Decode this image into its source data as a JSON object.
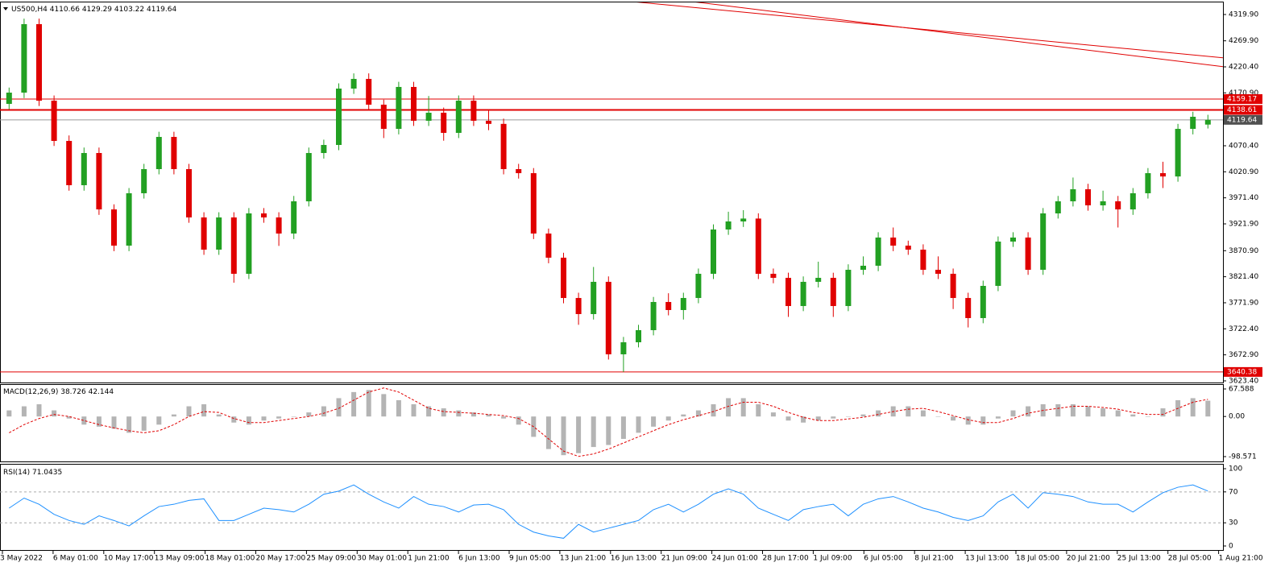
{
  "header": {
    "symbol": "US500,H4"
  },
  "chart_data": [
    {
      "type": "candlestick",
      "up_color": "#22a022",
      "down_color": "#e00000",
      "open": [
        4150,
        4171.4,
        4301.6,
        4156.1,
        4079.6,
        3995.4,
        4056.6,
        3949.4,
        3880.5,
        3980.1,
        4026.0,
        4087.2,
        4026.0,
        3934.1,
        3872.9,
        3934.1,
        3827.0,
        3941.8,
        3934.1,
        3903.5,
        3964.8,
        4056.6,
        4071.9,
        4179.1,
        4197.5,
        4148.5,
        4102.5,
        4182.2,
        4117.9,
        4133.2,
        4094.9,
        4156.1,
        4117.9,
        4112.0,
        4026.0,
        4018.3,
        3903.5,
        3857.6,
        3781.0,
        3750.4,
        3811.7,
        3673.9,
        3696.8,
        3719.8,
        3773.4,
        3758.1,
        3781.0,
        3827.0,
        3911.2,
        3926.5,
        3932,
        3827.0,
        3819.3,
        3765.7,
        3811.7,
        3819.3,
        3765.7,
        3834.6,
        3842.3,
        3895.9,
        3880.5,
        3872.9,
        3834.6,
        3827.0,
        3781.0,
        3742.8,
        3804.0,
        3888.2,
        3895.9,
        3834.6,
        3941.8,
        3964.8,
        3987.7,
        3957.1,
        3964.8,
        3949.4,
        3980.1,
        4018.3,
        4012.0,
        4102.5,
        4110.66
      ],
      "high": [
        4181,
        4312,
        4312,
        4166,
        4090,
        4067,
        4067,
        3959,
        3990,
        4036,
        4097,
        4097,
        4036,
        3944,
        3944,
        3944,
        3952,
        3952,
        3944,
        3975,
        4067,
        4082,
        4189,
        4208,
        4208,
        4158,
        4192,
        4192,
        4165,
        4143,
        4166,
        4166,
        4140,
        4122,
        4036,
        4028,
        3913,
        3867,
        3791,
        3840,
        3822,
        3707,
        3730,
        3783,
        3790,
        3791,
        3837,
        3921,
        3945,
        3948,
        3942,
        3837,
        3829,
        3822,
        3850,
        3829,
        3845,
        3860,
        3906,
        3915,
        3890,
        3883,
        3860,
        3837,
        3791,
        3814,
        3898,
        3906,
        3906,
        3952,
        3975,
        4010,
        3998,
        3985,
        3975,
        3990,
        4028,
        4040,
        4112,
        4135,
        4129.29
      ],
      "low": [
        4140,
        4161,
        4146,
        4070,
        3985,
        3985,
        3939,
        3870,
        3870,
        3970,
        4016,
        4016,
        3924,
        3863,
        3863,
        3810,
        3817,
        3924,
        3880,
        3893,
        3955,
        4046,
        4062,
        4169,
        4138,
        4085,
        4092,
        4108,
        4108,
        4080,
        4085,
        4108,
        4100,
        4016,
        4008,
        3893,
        3847,
        3771,
        3730,
        3740,
        3664,
        3640.4,
        3687,
        3710,
        3748,
        3740,
        3771,
        3817,
        3901,
        3916,
        3817,
        3809,
        3745,
        3756,
        3801,
        3745,
        3756,
        3825,
        3832,
        3870,
        3863,
        3825,
        3817,
        3760,
        3725,
        3733,
        3794,
        3878,
        3825,
        3825,
        3932,
        3955,
        3947,
        3947,
        3915,
        3939,
        3970,
        3990,
        4002,
        4092,
        4103.22
      ],
      "close": [
        4171.4,
        4301.6,
        4156.1,
        4079.6,
        3995.4,
        4056.6,
        3949.4,
        3880.5,
        3980.1,
        4026.0,
        4087.2,
        4026.0,
        3934.1,
        3872.9,
        3934.1,
        3827.0,
        3941.8,
        3934.1,
        3903.5,
        3964.8,
        4056.6,
        4071.9,
        4179.1,
        4197.5,
        4148.5,
        4102.5,
        4182.2,
        4117.9,
        4133.2,
        4094.9,
        4156.1,
        4117.9,
        4112.0,
        4026.0,
        4018.3,
        3903.5,
        3857.6,
        3781.0,
        3750.4,
        3811.7,
        3673.9,
        3696.8,
        3719.8,
        3773.4,
        3758.1,
        3781.0,
        3827.0,
        3911.2,
        3926.5,
        3932,
        3827.0,
        3819.3,
        3765.7,
        3811.7,
        3819.3,
        3765.7,
        3834.6,
        3842.3,
        3895.9,
        3880.5,
        3872.9,
        3834.6,
        3827.0,
        3781.0,
        3742.8,
        3804.0,
        3888.2,
        3895.9,
        3834.6,
        3941.8,
        3964.8,
        3987.7,
        3957.1,
        3964.8,
        3949.4,
        3980.1,
        4018.3,
        4012.0,
        4102.5,
        4125.5,
        4119.64
      ],
      "ylim": [
        3620.3,
        4342.9
      ],
      "yticks": [
        {
          "value": 4319.9,
          "label": "4319.90"
        },
        {
          "value": 4269.9,
          "label": "4269.90"
        },
        {
          "value": 4220.4,
          "label": "4220.40"
        },
        {
          "value": 4170.9,
          "label": "4170.90"
        },
        {
          "value": 4070.4,
          "label": "4070.40"
        },
        {
          "value": 4020.9,
          "label": "4020.90"
        },
        {
          "value": 3971.4,
          "label": "3971.40"
        },
        {
          "value": 3921.9,
          "label": "3921.90"
        },
        {
          "value": 3870.9,
          "label": "3870.90"
        },
        {
          "value": 3821.4,
          "label": "3821.40"
        },
        {
          "value": 3771.9,
          "label": "3771.90"
        },
        {
          "value": 3722.4,
          "label": "3722.40"
        },
        {
          "value": 3672.9,
          "label": "3672.90"
        },
        {
          "value": 3623.4,
          "label": "3623.40"
        }
      ],
      "levels": [
        {
          "value": 4159.17,
          "color": "#e00000"
        },
        {
          "value": 4138.61,
          "color": "#e00000"
        },
        {
          "value": 3640.38,
          "color": "#e00000"
        }
      ],
      "current": {
        "value": 4119.64,
        "color": "#9a9a9a"
      },
      "trendlines": [
        {
          "x": [
            41.6,
            81.1
          ],
          "y": [
            4344.4,
            4237.3
          ],
          "color": "#e00000"
        },
        {
          "x": [
            45.6,
            81.1
          ],
          "y": [
            4344.4,
            4220.4
          ],
          "color": "#e00000"
        }
      ],
      "x_labels": [
        "3 May 2022",
        "6 May 01:00",
        "10 May 17:00",
        "13 May 09:00",
        "18 May 01:00",
        "20 May 17:00",
        "25 May 09:00",
        "30 May 01:00",
        "1 Jun 21:00",
        "6 Jun 13:00",
        "9 Jun 05:00",
        "13 Jun 21:00",
        "16 Jun 13:00",
        "21 Jun 09:00",
        "24 Jun 01:00",
        "28 Jun 17:00",
        "1 Jul 09:00",
        "6 Jul 05:00",
        "8 Jul 21:00",
        "13 Jul 13:00",
        "18 Jul 05:00",
        "20 Jul 21:00",
        "25 Jul 13:00",
        "28 Jul 05:00",
        "1 Aug 21:00"
      ]
    },
    {
      "type": "macd",
      "title": "MACD(12,26,9)",
      "color": "#b4b4b4",
      "signal_color": "#e00000",
      "macd": [
        15,
        25,
        30,
        15,
        -5,
        -20,
        -25,
        -30,
        -40,
        -35,
        -20,
        5,
        25,
        30,
        5,
        -15,
        -20,
        -10,
        -5,
        0,
        10,
        25,
        45,
        60,
        65,
        55,
        40,
        30,
        25,
        20,
        15,
        10,
        5,
        -5,
        -20,
        -50,
        -80,
        -95,
        -90,
        -75,
        -70,
        -55,
        -40,
        -25,
        -10,
        5,
        15,
        30,
        45,
        45,
        30,
        10,
        -10,
        -15,
        -10,
        -5,
        0,
        5,
        15,
        25,
        25,
        15,
        0,
        -10,
        -20,
        -20,
        -5,
        15,
        25,
        30,
        30,
        30,
        25,
        20,
        15,
        5,
        0,
        20,
        40,
        45,
        38.726
      ],
      "signal": [
        -40,
        -20,
        -5,
        5,
        0,
        -10,
        -20,
        -28,
        -35,
        -40,
        -35,
        -20,
        0,
        12,
        10,
        -5,
        -15,
        -15,
        -10,
        -5,
        0,
        8,
        20,
        40,
        60,
        70,
        60,
        40,
        20,
        12,
        10,
        8,
        5,
        2,
        -5,
        -25,
        -55,
        -85,
        -98,
        -92,
        -80,
        -65,
        -50,
        -35,
        -20,
        -8,
        2,
        12,
        25,
        35,
        35,
        25,
        10,
        -2,
        -10,
        -10,
        -6,
        -2,
        5,
        12,
        18,
        20,
        12,
        2,
        -8,
        -15,
        -15,
        -5,
        8,
        15,
        20,
        25,
        25,
        22,
        18,
        10,
        5,
        5,
        20,
        35,
        42.144
      ],
      "ylim": [
        -110.4,
        77.5
      ],
      "yticks": [
        67.588,
        {
          "value": 0,
          "label": "0.00"
        },
        -98.571
      ]
    },
    {
      "type": "rsi",
      "title": "RSI(14)",
      "color": "#1e90ff",
      "values": [
        49,
        62,
        54,
        41,
        33,
        28,
        39,
        33,
        26,
        39,
        51,
        54,
        59,
        61,
        33,
        33,
        41,
        49,
        47,
        44,
        54,
        67,
        71,
        79,
        67,
        57,
        49,
        64,
        54,
        51,
        44,
        53,
        54,
        47,
        28,
        18,
        13,
        10,
        28,
        18,
        23,
        28,
        33,
        47,
        54,
        44,
        54,
        67,
        74,
        67,
        49,
        41,
        33,
        47,
        51,
        54,
        39,
        54,
        61,
        64,
        57,
        49,
        44,
        37,
        33,
        39,
        57,
        67,
        49,
        69,
        67,
        64,
        57,
        54,
        54,
        44,
        57,
        69,
        76,
        79,
        71.0435
      ],
      "levels": [
        70,
        30
      ],
      "ylim": [
        -5.2,
        104.2
      ],
      "yticks": [
        100,
        70,
        30,
        0
      ]
    }
  ]
}
